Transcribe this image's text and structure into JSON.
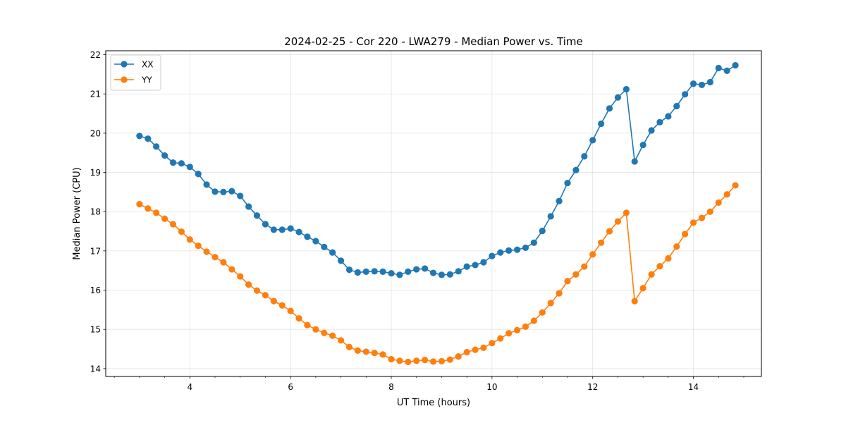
{
  "chart_data": {
    "type": "line",
    "title": "2024-02-25 - Cor 220 - LWA279 - Median Power vs. Time",
    "xlabel": "UT Time (hours)",
    "ylabel": "Median Power (CPU)",
    "xlim": [
      2.33,
      15.35
    ],
    "ylim": [
      13.8,
      22.1
    ],
    "xticks": [
      4,
      6,
      8,
      10,
      12,
      14
    ],
    "xminor_step": 0.5,
    "yticks": [
      14,
      15,
      16,
      17,
      18,
      19,
      20,
      21,
      22
    ],
    "grid": true,
    "legend_position": "top-left",
    "x": [
      3.0,
      3.167,
      3.333,
      3.5,
      3.667,
      3.833,
      4.0,
      4.167,
      4.333,
      4.5,
      4.667,
      4.833,
      5.0,
      5.167,
      5.333,
      5.5,
      5.667,
      5.833,
      6.0,
      6.167,
      6.333,
      6.5,
      6.667,
      6.833,
      7.0,
      7.167,
      7.333,
      7.5,
      7.667,
      7.833,
      8.0,
      8.167,
      8.333,
      8.5,
      8.667,
      8.833,
      9.0,
      9.167,
      9.333,
      9.5,
      9.667,
      9.833,
      10.0,
      10.167,
      10.333,
      10.5,
      10.667,
      10.833,
      11.0,
      11.167,
      11.333,
      11.5,
      11.667,
      11.833,
      12.0,
      12.167,
      12.333,
      12.5,
      12.667,
      12.833,
      13.0,
      13.167,
      13.333,
      13.5,
      13.667,
      13.833,
      14.0,
      14.167,
      14.333,
      14.5,
      14.667,
      14.833
    ],
    "series": [
      {
        "name": "XX",
        "color": "#1f77b4",
        "values": [
          19.93,
          19.86,
          19.66,
          19.43,
          19.25,
          19.23,
          19.14,
          18.96,
          18.69,
          18.51,
          18.5,
          18.52,
          18.4,
          18.13,
          17.9,
          17.68,
          17.54,
          17.54,
          17.57,
          17.48,
          17.36,
          17.25,
          17.1,
          16.96,
          16.75,
          16.52,
          16.45,
          16.47,
          16.48,
          16.47,
          16.43,
          16.39,
          16.47,
          16.53,
          16.55,
          16.44,
          16.39,
          16.4,
          16.48,
          16.6,
          16.64,
          16.71,
          16.87,
          16.96,
          17.01,
          17.03,
          17.08,
          17.21,
          17.51,
          17.88,
          18.27,
          18.73,
          19.06,
          19.41,
          19.82,
          20.24,
          20.63,
          20.91,
          21.12,
          19.28,
          19.7,
          20.07,
          20.28,
          20.43,
          20.69,
          20.99,
          21.26,
          21.23,
          21.3,
          21.66,
          21.59,
          21.73
        ]
      },
      {
        "name": "YY",
        "color": "#ff7f0e",
        "values": [
          18.19,
          18.08,
          17.97,
          17.82,
          17.68,
          17.49,
          17.29,
          17.13,
          16.98,
          16.84,
          16.71,
          16.53,
          16.35,
          16.14,
          15.99,
          15.87,
          15.72,
          15.61,
          15.47,
          15.28,
          15.11,
          15.0,
          14.91,
          14.84,
          14.72,
          14.55,
          14.46,
          14.43,
          14.4,
          14.36,
          14.24,
          14.2,
          14.17,
          14.2,
          14.22,
          14.18,
          14.19,
          14.23,
          14.31,
          14.42,
          14.48,
          14.53,
          14.65,
          14.77,
          14.9,
          14.98,
          15.07,
          15.22,
          15.43,
          15.67,
          15.92,
          16.23,
          16.4,
          16.6,
          16.91,
          17.21,
          17.5,
          17.75,
          17.97,
          15.72,
          16.05,
          16.4,
          16.61,
          16.81,
          17.11,
          17.43,
          17.72,
          17.84,
          18.0,
          18.23,
          18.44,
          18.67
        ]
      }
    ]
  }
}
